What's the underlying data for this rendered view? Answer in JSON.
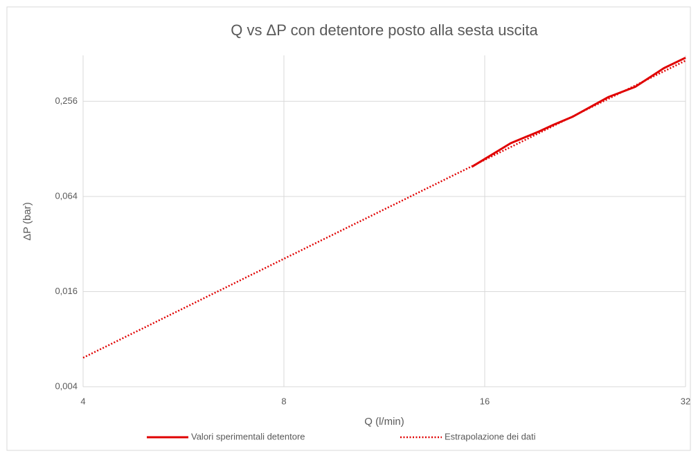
{
  "chart_data": {
    "type": "line",
    "title": "Q vs ΔP con detentore posto alla sesta uscita",
    "x_label": "Q (l/min)",
    "y_label": "ΔP (bar)",
    "x_log": true,
    "y_log": true,
    "grid": true,
    "legend": "bottom",
    "xlim": [
      4,
      32
    ],
    "xticks": [
      4,
      8,
      16,
      32
    ],
    "ylim": [
      0.004,
      0.5
    ],
    "yticks": [
      {
        "value": 0.004,
        "label": "0,004"
      },
      {
        "value": 0.016,
        "label": "0,016"
      },
      {
        "value": 0.064,
        "label": "0,064"
      },
      {
        "value": 0.256,
        "label": "0,256"
      }
    ],
    "series": [
      {
        "name": "Valori sperimentali detentore",
        "color": "#e00000",
        "style": "solid",
        "x": [
          15.3,
          17.5,
          19.3,
          20.3,
          21.7,
          24.5,
          26.9,
          29.7,
          32
        ],
        "values": [
          0.0985,
          0.139,
          0.165,
          0.182,
          0.205,
          0.272,
          0.316,
          0.415,
          0.483
        ]
      },
      {
        "name": "Estrapolazione dei dati",
        "color": "#e00000",
        "style": "dotted",
        "x": [
          4,
          8,
          16,
          32
        ],
        "values": [
          0.0061,
          0.0258,
          0.109,
          0.463
        ]
      }
    ]
  }
}
